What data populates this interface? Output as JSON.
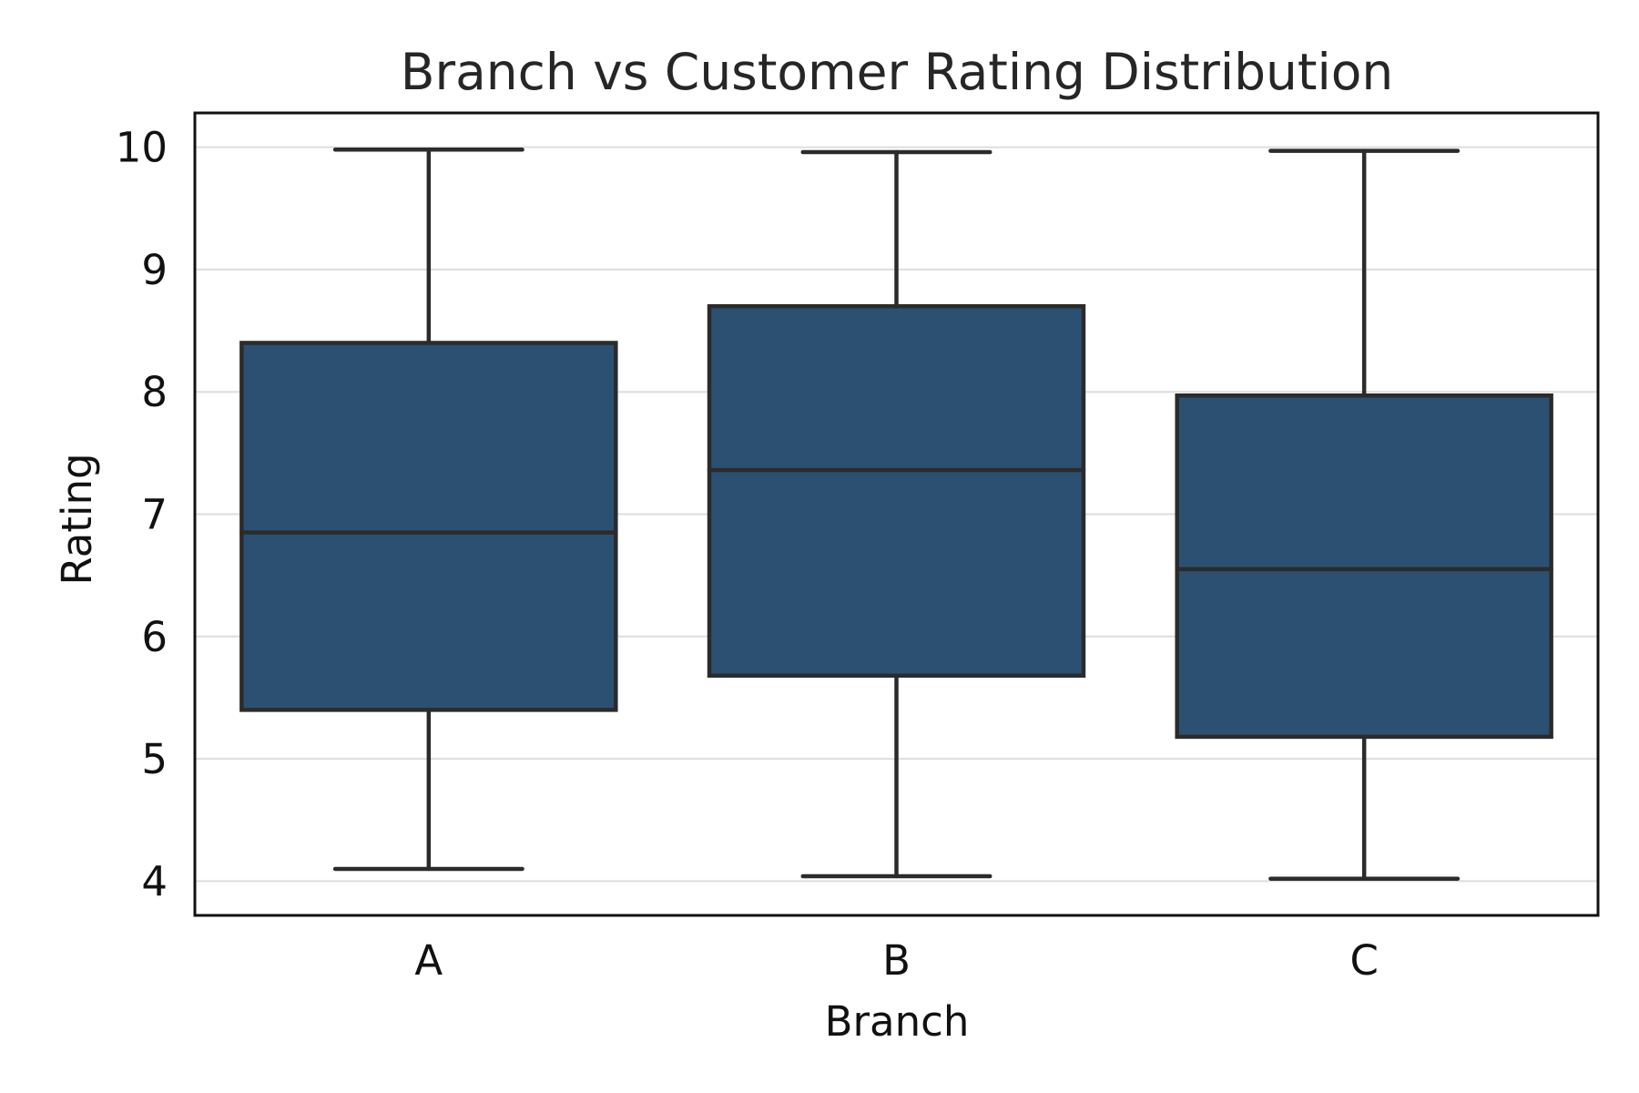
{
  "chart_data": {
    "type": "box",
    "title": "Branch vs Customer Rating Distribution",
    "xlabel": "Branch",
    "ylabel": "Rating",
    "categories": [
      "A",
      "B",
      "C"
    ],
    "ylim": [
      3.72,
      10.28
    ],
    "yticks": [
      4,
      5,
      6,
      7,
      8,
      9,
      10
    ],
    "grid": "horizontal",
    "legend": "none",
    "colors": {
      "box_fill": "#2c5072",
      "box_edge": "#2b2b2b",
      "grid": "#dddddd",
      "frame": "#111111"
    },
    "boxes": [
      {
        "category": "A",
        "min": 4.1,
        "q1": 5.4,
        "median": 6.85,
        "q3": 8.4,
        "max": 9.98
      },
      {
        "category": "B",
        "min": 4.04,
        "q1": 5.68,
        "median": 7.36,
        "q3": 8.7,
        "max": 9.96
      },
      {
        "category": "C",
        "min": 4.02,
        "q1": 5.18,
        "median": 6.55,
        "q3": 7.97,
        "max": 9.97
      }
    ]
  }
}
